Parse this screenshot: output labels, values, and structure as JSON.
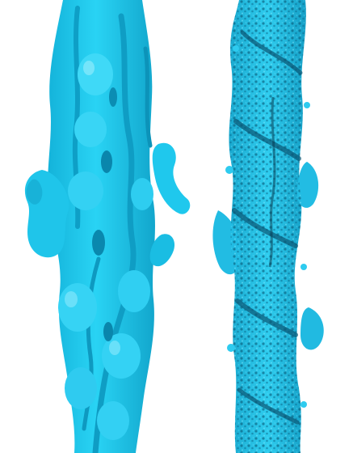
{
  "figure": {
    "background_color": "#ffffff",
    "panels": [
      {
        "id": "low-resolution-map",
        "surface_color": "#1ec8ec",
        "shade_color": "#0a93b8",
        "highlight_color": "#6fe3f8"
      },
      {
        "id": "high-resolution-map",
        "surface_color": "#28c6ea",
        "shade_color": "#0b5f7d",
        "highlight_color": "#7fe6fb"
      }
    ]
  }
}
